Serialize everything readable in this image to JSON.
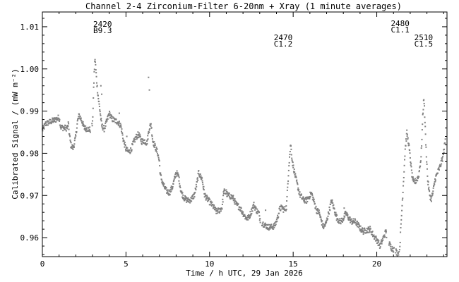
{
  "chart_data": {
    "type": "scatter",
    "title": "Channel 2-4   Zirconium-Filter   6-20nm + Xray   (1 minute averages)",
    "xlabel": "Time / h UTC, 29 Jan 2026",
    "ylabel": "Calibrated Signal / (mW m⁻²)",
    "xlim": [
      0,
      24.2
    ],
    "ylim": [
      0.9555,
      1.0135
    ],
    "x_ticks": [
      0,
      5,
      10,
      15,
      20
    ],
    "y_ticks": [
      0.96,
      0.97,
      0.98,
      0.99,
      1.0,
      1.01
    ],
    "y_tick_labels": [
      "0.96",
      "0.97",
      "0.98",
      "0.99",
      "1.00",
      "1.01"
    ],
    "grid": false,
    "marker_color": "#808080",
    "annotations": [
      {
        "id": "a2420",
        "x": 3.6,
        "lines": [
          "2420",
          "B9.3"
        ]
      },
      {
        "id": "a2470",
        "x": 14.4,
        "lines": [
          "2470",
          "C1.2"
        ]
      },
      {
        "id": "a2480",
        "x": 21.4,
        "lines": [
          "2480",
          "C1.1"
        ]
      },
      {
        "id": "a2510",
        "x": 22.8,
        "lines": [
          "2510",
          "C1.5"
        ]
      }
    ],
    "profile": [
      [
        0.0,
        0.9855
      ],
      [
        0.2,
        0.987
      ],
      [
        0.5,
        0.9875
      ],
      [
        0.8,
        0.988
      ],
      [
        1.0,
        0.9885
      ],
      [
        1.1,
        0.9862
      ],
      [
        1.3,
        0.986
      ],
      [
        1.5,
        0.986
      ],
      [
        1.55,
        0.987
      ],
      [
        1.6,
        0.985
      ],
      [
        1.7,
        0.982
      ],
      [
        1.85,
        0.9812
      ],
      [
        2.0,
        0.984
      ],
      [
        2.1,
        0.9875
      ],
      [
        2.2,
        0.989
      ],
      [
        2.35,
        0.9878
      ],
      [
        2.5,
        0.986
      ],
      [
        2.7,
        0.9858
      ],
      [
        2.9,
        0.9855
      ],
      [
        3.0,
        0.987
      ],
      [
        3.1,
        0.999
      ],
      [
        3.15,
        1.0025
      ],
      [
        3.25,
        0.997
      ],
      [
        3.35,
        0.993
      ],
      [
        3.45,
        0.99
      ],
      [
        3.55,
        0.9865
      ],
      [
        3.7,
        0.9858
      ],
      [
        3.85,
        0.9875
      ],
      [
        4.0,
        0.9895
      ],
      [
        4.15,
        0.9882
      ],
      [
        4.3,
        0.9878
      ],
      [
        4.5,
        0.9875
      ],
      [
        4.7,
        0.9865
      ],
      [
        4.85,
        0.983
      ],
      [
        5.0,
        0.981
      ],
      [
        5.15,
        0.9803
      ],
      [
        5.3,
        0.9808
      ],
      [
        5.45,
        0.9825
      ],
      [
        5.6,
        0.9838
      ],
      [
        5.75,
        0.9845
      ],
      [
        5.95,
        0.9828
      ],
      [
        6.1,
        0.983
      ],
      [
        6.25,
        0.9824
      ],
      [
        6.4,
        0.986
      ],
      [
        6.5,
        0.987
      ],
      [
        6.6,
        0.983
      ],
      [
        6.75,
        0.9815
      ],
      [
        6.9,
        0.98
      ],
      [
        7.0,
        0.978
      ],
      [
        7.05,
        0.975
      ],
      [
        7.2,
        0.9728
      ],
      [
        7.4,
        0.9712
      ],
      [
        7.6,
        0.9706
      ],
      [
        7.8,
        0.9722
      ],
      [
        8.0,
        0.9755
      ],
      [
        8.15,
        0.9745
      ],
      [
        8.3,
        0.9708
      ],
      [
        8.5,
        0.9693
      ],
      [
        8.7,
        0.9688
      ],
      [
        8.9,
        0.969
      ],
      [
        9.1,
        0.9702
      ],
      [
        9.25,
        0.973
      ],
      [
        9.35,
        0.9755
      ],
      [
        9.45,
        0.9745
      ],
      [
        9.55,
        0.974
      ],
      [
        9.7,
        0.9702
      ],
      [
        9.8,
        0.9695
      ],
      [
        10.0,
        0.9685
      ],
      [
        10.2,
        0.9675
      ],
      [
        10.4,
        0.9662
      ],
      [
        10.6,
        0.9665
      ],
      [
        10.75,
        0.9672
      ],
      [
        10.85,
        0.971
      ],
      [
        11.0,
        0.9705
      ],
      [
        11.1,
        0.97
      ],
      [
        11.25,
        0.9698
      ],
      [
        11.4,
        0.9695
      ],
      [
        11.6,
        0.9678
      ],
      [
        11.8,
        0.9672
      ],
      [
        12.0,
        0.9658
      ],
      [
        12.2,
        0.9645
      ],
      [
        12.35,
        0.9648
      ],
      [
        12.5,
        0.9662
      ],
      [
        12.65,
        0.9678
      ],
      [
        12.8,
        0.9665
      ],
      [
        12.95,
        0.9658
      ],
      [
        13.05,
        0.9638
      ],
      [
        13.3,
        0.963
      ],
      [
        13.5,
        0.9625
      ],
      [
        13.7,
        0.9625
      ],
      [
        13.9,
        0.9628
      ],
      [
        14.05,
        0.9645
      ],
      [
        14.2,
        0.9668
      ],
      [
        14.35,
        0.9672
      ],
      [
        14.45,
        0.9665
      ],
      [
        14.6,
        0.9672
      ],
      [
        14.75,
        0.9775
      ],
      [
        14.85,
        0.9822
      ],
      [
        14.95,
        0.978
      ],
      [
        15.1,
        0.975
      ],
      [
        15.25,
        0.9725
      ],
      [
        15.4,
        0.9702
      ],
      [
        15.6,
        0.969
      ],
      [
        15.8,
        0.9688
      ],
      [
        16.0,
        0.97
      ],
      [
        16.1,
        0.9705
      ],
      [
        16.25,
        0.9685
      ],
      [
        16.4,
        0.9665
      ],
      [
        16.55,
        0.966
      ],
      [
        16.65,
        0.9645
      ],
      [
        16.8,
        0.9625
      ],
      [
        16.95,
        0.9632
      ],
      [
        17.1,
        0.9655
      ],
      [
        17.3,
        0.9688
      ],
      [
        17.45,
        0.9668
      ],
      [
        17.6,
        0.9648
      ],
      [
        17.8,
        0.9637
      ],
      [
        18.0,
        0.9645
      ],
      [
        18.15,
        0.9658
      ],
      [
        18.3,
        0.9648
      ],
      [
        18.5,
        0.9638
      ],
      [
        18.7,
        0.9638
      ],
      [
        18.85,
        0.9632
      ],
      [
        19.0,
        0.9622
      ],
      [
        19.2,
        0.9615
      ],
      [
        19.4,
        0.9618
      ],
      [
        19.6,
        0.962
      ],
      [
        19.8,
        0.9605
      ],
      [
        20.0,
        0.9595
      ],
      [
        20.2,
        0.958
      ],
      [
        20.35,
        0.9595
      ],
      [
        20.5,
        0.961
      ],
      [
        20.55,
        0.9615
      ],
      [
        20.6,
        0.96
      ],
      [
        20.75,
        0.9585
      ],
      [
        20.9,
        0.9575
      ],
      [
        21.1,
        0.957
      ],
      [
        21.25,
        0.9562
      ],
      [
        21.35,
        0.956
      ],
      [
        21.45,
        0.963
      ],
      [
        21.6,
        0.9735
      ],
      [
        21.7,
        0.981
      ],
      [
        21.8,
        0.9848
      ],
      [
        21.9,
        0.9825
      ],
      [
        22.0,
        0.979
      ],
      [
        22.1,
        0.975
      ],
      [
        22.2,
        0.973
      ],
      [
        22.35,
        0.9735
      ],
      [
        22.5,
        0.9745
      ],
      [
        22.65,
        0.979
      ],
      [
        22.75,
        0.9885
      ],
      [
        22.82,
        0.9935
      ],
      [
        22.95,
        0.981
      ],
      [
        23.05,
        0.9735
      ],
      [
        23.15,
        0.9705
      ],
      [
        23.25,
        0.969
      ],
      [
        23.35,
        0.9705
      ],
      [
        23.5,
        0.974
      ],
      [
        23.65,
        0.9755
      ],
      [
        23.8,
        0.977
      ],
      [
        23.95,
        0.979
      ],
      [
        24.1,
        0.983
      ]
    ],
    "gaps": [
      [
        2.88,
        2.96
      ],
      [
        13.05,
        13.12
      ],
      [
        20.6,
        20.72
      ],
      [
        21.05,
        21.13
      ]
    ],
    "isolated_points": [
      [
        3.5,
        0.996
      ],
      [
        3.55,
        0.994
      ],
      [
        6.35,
        0.998
      ],
      [
        6.4,
        0.995
      ],
      [
        4.6,
        0.9895
      ],
      [
        5.05,
        0.984
      ],
      [
        11.0,
        0.9713
      ],
      [
        13.35,
        0.9665
      ],
      [
        18.05,
        0.967
      ],
      [
        20.55,
        0.9618
      ]
    ]
  }
}
